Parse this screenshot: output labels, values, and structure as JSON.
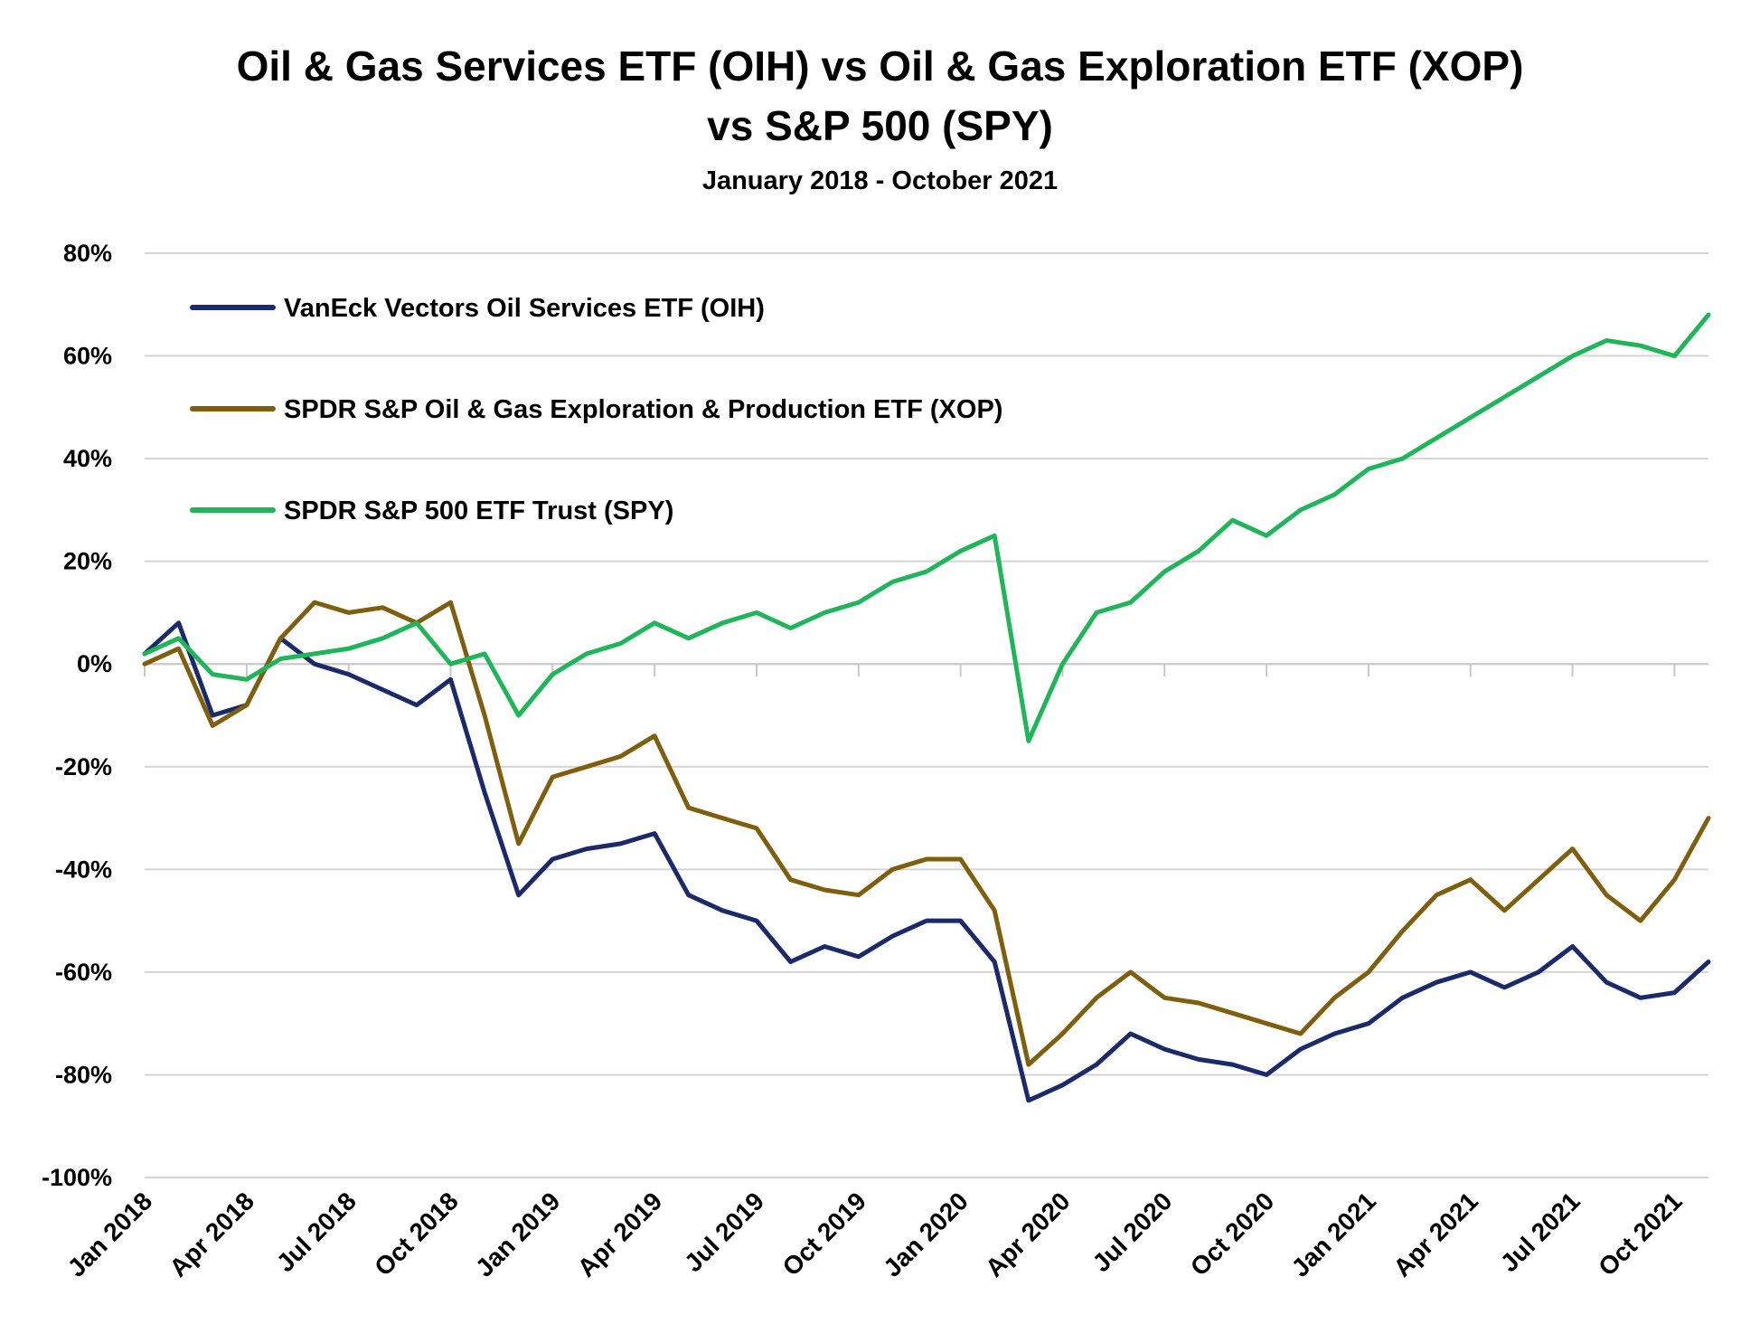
{
  "chart_data": {
    "type": "line",
    "title_lines": [
      "Oil & Gas Services ETF (OIH) vs Oil & Gas Exploration ETF (XOP)",
      "vs S&P 500 (SPY)"
    ],
    "subtitle": "January 2018 - October 2021",
    "xlabel": "",
    "ylabel": "",
    "ylim": [
      -100,
      80
    ],
    "y_ticks": [
      80,
      60,
      40,
      20,
      0,
      -20,
      -40,
      -60,
      -80,
      -100
    ],
    "y_tick_labels": [
      "80%",
      "60%",
      "40%",
      "20%",
      "0%",
      "-20%",
      "-40%",
      "-60%",
      "-80%",
      "-100%"
    ],
    "x_ticks": [
      "2018-01",
      "2018-04",
      "2018-07",
      "2018-10",
      "2019-01",
      "2019-04",
      "2019-07",
      "2019-10",
      "2020-01",
      "2020-04",
      "2020-07",
      "2020-10",
      "2021-01",
      "2021-04",
      "2021-07",
      "2021-10"
    ],
    "x_tick_labels": [
      "Jan 2018",
      "Apr 2018",
      "Jul 2018",
      "Oct 2018",
      "Jan 2019",
      "Apr 2019",
      "Jul 2019",
      "Oct 2019",
      "Jan 2020",
      "Apr 2020",
      "Jul 2020",
      "Oct 2020",
      "Jan 2021",
      "Apr 2021",
      "Jul 2021",
      "Oct 2021"
    ],
    "xlim": [
      "2018-01",
      "2021-11"
    ],
    "grid": "horizontal",
    "legend_position": "top-left",
    "series": [
      {
        "name": "VanEck Vectors Oil Services ETF (OIH)",
        "color": "#1b2a6b",
        "x": [
          "2018-01",
          "2018-02",
          "2018-03",
          "2018-04",
          "2018-05",
          "2018-06",
          "2018-07",
          "2018-08",
          "2018-09",
          "2018-10",
          "2018-11",
          "2018-12",
          "2019-01",
          "2019-02",
          "2019-03",
          "2019-04",
          "2019-05",
          "2019-06",
          "2019-07",
          "2019-08",
          "2019-09",
          "2019-10",
          "2019-11",
          "2019-12",
          "2020-01",
          "2020-02",
          "2020-03",
          "2020-04",
          "2020-05",
          "2020-06",
          "2020-07",
          "2020-08",
          "2020-09",
          "2020-10",
          "2020-11",
          "2020-12",
          "2021-01",
          "2021-02",
          "2021-03",
          "2021-04",
          "2021-05",
          "2021-06",
          "2021-07",
          "2021-08",
          "2021-09",
          "2021-10",
          "2021-11"
        ],
        "y": [
          2,
          8,
          -10,
          -8,
          5,
          0,
          -2,
          -5,
          -8,
          -3,
          -25,
          -45,
          -38,
          -36,
          -35,
          -33,
          -45,
          -48,
          -50,
          -58,
          -55,
          -57,
          -53,
          -50,
          -50,
          -58,
          -85,
          -82,
          -78,
          -72,
          -75,
          -77,
          -78,
          -80,
          -75,
          -72,
          -70,
          -65,
          -62,
          -60,
          -63,
          -60,
          -55,
          -62,
          -65,
          -64,
          -58
        ]
      },
      {
        "name": "SPDR S&P Oil & Gas Exploration & Production ETF (XOP)",
        "color": "#7f5f0e",
        "x": [
          "2018-01",
          "2018-02",
          "2018-03",
          "2018-04",
          "2018-05",
          "2018-06",
          "2018-07",
          "2018-08",
          "2018-09",
          "2018-10",
          "2018-11",
          "2018-12",
          "2019-01",
          "2019-02",
          "2019-03",
          "2019-04",
          "2019-05",
          "2019-06",
          "2019-07",
          "2019-08",
          "2019-09",
          "2019-10",
          "2019-11",
          "2019-12",
          "2020-01",
          "2020-02",
          "2020-03",
          "2020-04",
          "2020-05",
          "2020-06",
          "2020-07",
          "2020-08",
          "2020-09",
          "2020-10",
          "2020-11",
          "2020-12",
          "2021-01",
          "2021-02",
          "2021-03",
          "2021-04",
          "2021-05",
          "2021-06",
          "2021-07",
          "2021-08",
          "2021-09",
          "2021-10",
          "2021-11"
        ],
        "y": [
          0,
          3,
          -12,
          -8,
          5,
          12,
          10,
          11,
          8,
          12,
          -10,
          -35,
          -22,
          -20,
          -18,
          -14,
          -28,
          -30,
          -32,
          -42,
          -44,
          -45,
          -40,
          -38,
          -38,
          -48,
          -78,
          -72,
          -65,
          -60,
          -65,
          -66,
          -68,
          -70,
          -72,
          -65,
          -60,
          -52,
          -45,
          -42,
          -48,
          -42,
          -36,
          -45,
          -50,
          -42,
          -30
        ]
      },
      {
        "name": "SPDR S&P 500 ETF Trust (SPY)",
        "color": "#1fb65a",
        "x": [
          "2018-01",
          "2018-02",
          "2018-03",
          "2018-04",
          "2018-05",
          "2018-06",
          "2018-07",
          "2018-08",
          "2018-09",
          "2018-10",
          "2018-11",
          "2018-12",
          "2019-01",
          "2019-02",
          "2019-03",
          "2019-04",
          "2019-05",
          "2019-06",
          "2019-07",
          "2019-08",
          "2019-09",
          "2019-10",
          "2019-11",
          "2019-12",
          "2020-01",
          "2020-02",
          "2020-03",
          "2020-04",
          "2020-05",
          "2020-06",
          "2020-07",
          "2020-08",
          "2020-09",
          "2020-10",
          "2020-11",
          "2020-12",
          "2021-01",
          "2021-02",
          "2021-03",
          "2021-04",
          "2021-05",
          "2021-06",
          "2021-07",
          "2021-08",
          "2021-09",
          "2021-10",
          "2021-11"
        ],
        "y": [
          2,
          5,
          -2,
          -3,
          1,
          2,
          3,
          5,
          8,
          0,
          2,
          -10,
          -2,
          2,
          4,
          8,
          5,
          8,
          10,
          7,
          10,
          12,
          16,
          18,
          22,
          25,
          -15,
          0,
          10,
          12,
          18,
          22,
          28,
          25,
          30,
          33,
          38,
          40,
          44,
          48,
          52,
          56,
          60,
          63,
          62,
          60,
          68
        ]
      }
    ]
  }
}
